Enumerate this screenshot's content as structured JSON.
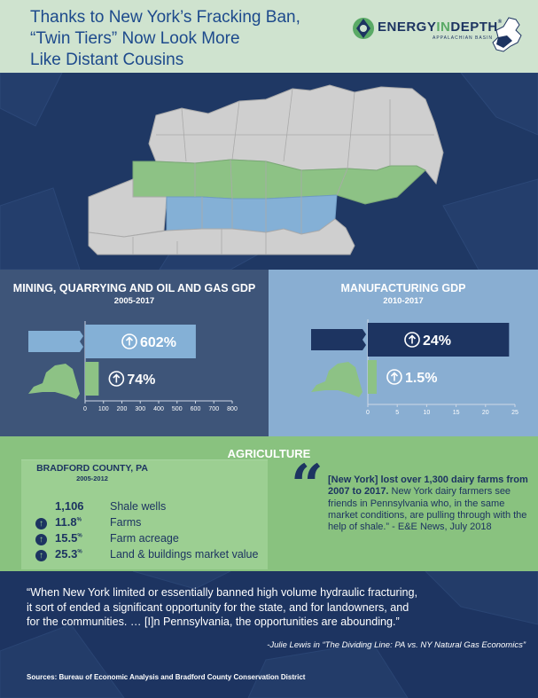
{
  "header": {
    "title_lines": [
      "Thanks to New York’s Fracking Ban,",
      "“Twin Tiers” Now Look More",
      "Like Distant Cousins"
    ],
    "logo": {
      "text_main": "ENERGY",
      "text_in": "IN",
      "text_depth": "DEPTH",
      "tm": "®",
      "subtitle": "APPALACHIAN BASIN"
    }
  },
  "colors": {
    "navy": "#1d3461",
    "map_gray": "#d0d0d0",
    "ny_green": "#8dc285",
    "pa_blue": "#84b0d6",
    "panel_left_bg": "#3e5579",
    "panel_right_bg": "#89aed2",
    "agri_bg": "#89c27f"
  },
  "chart_data": [
    {
      "type": "bar",
      "title": "MINING, QUARRYING AND OIL AND GAS GDP",
      "subtitle": "2005-2017",
      "categories": [
        "Pennsylvania",
        "New York"
      ],
      "values": [
        602,
        74
      ],
      "value_labels": [
        "602%",
        "74%"
      ],
      "xlim": [
        0,
        800
      ],
      "ticks": [
        0,
        100,
        200,
        300,
        400,
        500,
        600,
        700,
        800
      ],
      "bar_colors": [
        "#84b0d6",
        "#8dc285"
      ],
      "label_colors": [
        "#ffffff",
        "#ffffff"
      ],
      "icons": [
        "pennsylvania-shape-icon",
        "new-york-shape-icon"
      ],
      "icon_colors": [
        "#84b0d6",
        "#8dc285"
      ]
    },
    {
      "type": "bar",
      "title": "MANUFACTURING GDP",
      "subtitle": "2010-2017",
      "categories": [
        "Pennsylvania",
        "New York"
      ],
      "values": [
        24,
        1.5
      ],
      "value_labels": [
        "24%",
        "1.5%"
      ],
      "xlim": [
        0,
        25
      ],
      "ticks": [
        0,
        5,
        10,
        15,
        20,
        25
      ],
      "bar_colors": [
        "#1d3461",
        "#8dc285"
      ],
      "label_colors": [
        "#ffffff",
        "#ffffff"
      ],
      "icons": [
        "pennsylvania-shape-icon",
        "new-york-shape-icon"
      ],
      "icon_colors": [
        "#1d3461",
        "#8dc285"
      ]
    }
  ],
  "agriculture": {
    "title": "AGRICULTURE",
    "county": "BRADFORD COUNTY, PA",
    "years": "2005-2012",
    "stats": [
      {
        "value": "1,106",
        "suffix": "",
        "label": "Shale wells",
        "arrow": false
      },
      {
        "value": "11.8",
        "suffix": "%",
        "label": "Farms",
        "arrow": true
      },
      {
        "value": "15.5",
        "suffix": "%",
        "label": "Farm acreage",
        "arrow": true
      },
      {
        "value": "25.3",
        "suffix": "%",
        "label": "Land & buildings market value",
        "arrow": true
      }
    ],
    "quote_bold": "[New York] lost over 1,300 dairy farms from 2007 to 2017.",
    "quote_rest": " New York dairy farmers see friends in Pennsylvania who, in the same market conditions, are pulling through with the help of shale.” - E&E News, July 2018"
  },
  "bottom": {
    "quote_lines": [
      "“When New York limited or essentially banned high volume hydraulic fracturing,",
      "it sort of ended a significant opportunity for the state, and for landowners, and",
      "for the communities. … [I]n Pennsylvania, the opportunities are abounding.”"
    ],
    "attribution": "-Julie Lewis in “The Dividing Line: PA vs. NY Natural Gas Economics”",
    "sources": "Sources: Bureau of Economic Analysis and Bradford County Conservation District"
  }
}
